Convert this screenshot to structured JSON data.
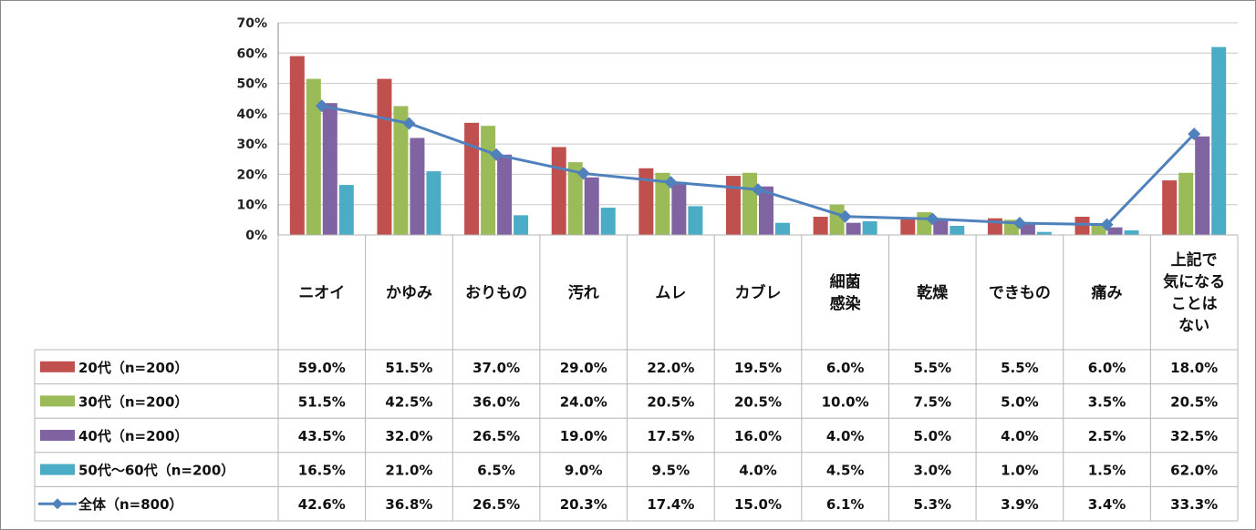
{
  "chart_data": {
    "type": "bar",
    "ylim": [
      0,
      70
    ],
    "y_ticks": [
      "0%",
      "10%",
      "20%",
      "30%",
      "40%",
      "50%",
      "60%",
      "70%"
    ],
    "grid": true,
    "legend_placement": "left of data table",
    "categories": [
      [
        "ニオイ"
      ],
      [
        "かゆみ"
      ],
      [
        "おりもの"
      ],
      [
        "汚れ"
      ],
      [
        "ムレ"
      ],
      [
        "カブレ"
      ],
      [
        "細菌",
        "感染"
      ],
      [
        "乾燥"
      ],
      [
        "できもの"
      ],
      [
        "痛み"
      ],
      [
        "上記で",
        "気になる",
        "ことは",
        "ない"
      ]
    ],
    "series": [
      {
        "name": "20代（n=200）",
        "type": "bar",
        "color": "#c0504d",
        "values": [
          59.0,
          51.5,
          37.0,
          29.0,
          22.0,
          19.5,
          6.0,
          5.5,
          5.5,
          6.0,
          18.0
        ],
        "labels": [
          "59.0%",
          "51.5%",
          "37.0%",
          "29.0%",
          "22.0%",
          "19.5%",
          "6.0%",
          "5.5%",
          "5.5%",
          "6.0%",
          "18.0%"
        ]
      },
      {
        "name": "30代（n=200）",
        "type": "bar",
        "color": "#9bbb59",
        "values": [
          51.5,
          42.5,
          36.0,
          24.0,
          20.5,
          20.5,
          10.0,
          7.5,
          5.0,
          3.5,
          20.5
        ],
        "labels": [
          "51.5%",
          "42.5%",
          "36.0%",
          "24.0%",
          "20.5%",
          "20.5%",
          "10.0%",
          "7.5%",
          "5.0%",
          "3.5%",
          "20.5%"
        ]
      },
      {
        "name": "40代（n=200）",
        "type": "bar",
        "color": "#8064a2",
        "values": [
          43.5,
          32.0,
          26.5,
          19.0,
          17.5,
          16.0,
          4.0,
          5.0,
          4.0,
          2.5,
          32.5
        ],
        "labels": [
          "43.5%",
          "32.0%",
          "26.5%",
          "19.0%",
          "17.5%",
          "16.0%",
          "4.0%",
          "5.0%",
          "4.0%",
          "2.5%",
          "32.5%"
        ]
      },
      {
        "name": "50代～60代（n=200）",
        "type": "bar",
        "color": "#4bacc6",
        "values": [
          16.5,
          21.0,
          6.5,
          9.0,
          9.5,
          4.0,
          4.5,
          3.0,
          1.0,
          1.5,
          62.0
        ],
        "labels": [
          "16.5%",
          "21.0%",
          "6.5%",
          "9.0%",
          "9.5%",
          "4.0%",
          "4.5%",
          "3.0%",
          "1.0%",
          "1.5%",
          "62.0%"
        ]
      },
      {
        "name": "全体（n=800）",
        "type": "line",
        "color": "#4f81bd",
        "values": [
          42.6,
          36.8,
          26.5,
          20.3,
          17.4,
          15.0,
          6.1,
          5.3,
          3.9,
          3.4,
          33.3
        ],
        "labels": [
          "42.6%",
          "36.8%",
          "26.5%",
          "20.3%",
          "17.4%",
          "15.0%",
          "6.1%",
          "5.3%",
          "3.9%",
          "3.4%",
          "33.3%"
        ]
      }
    ]
  }
}
